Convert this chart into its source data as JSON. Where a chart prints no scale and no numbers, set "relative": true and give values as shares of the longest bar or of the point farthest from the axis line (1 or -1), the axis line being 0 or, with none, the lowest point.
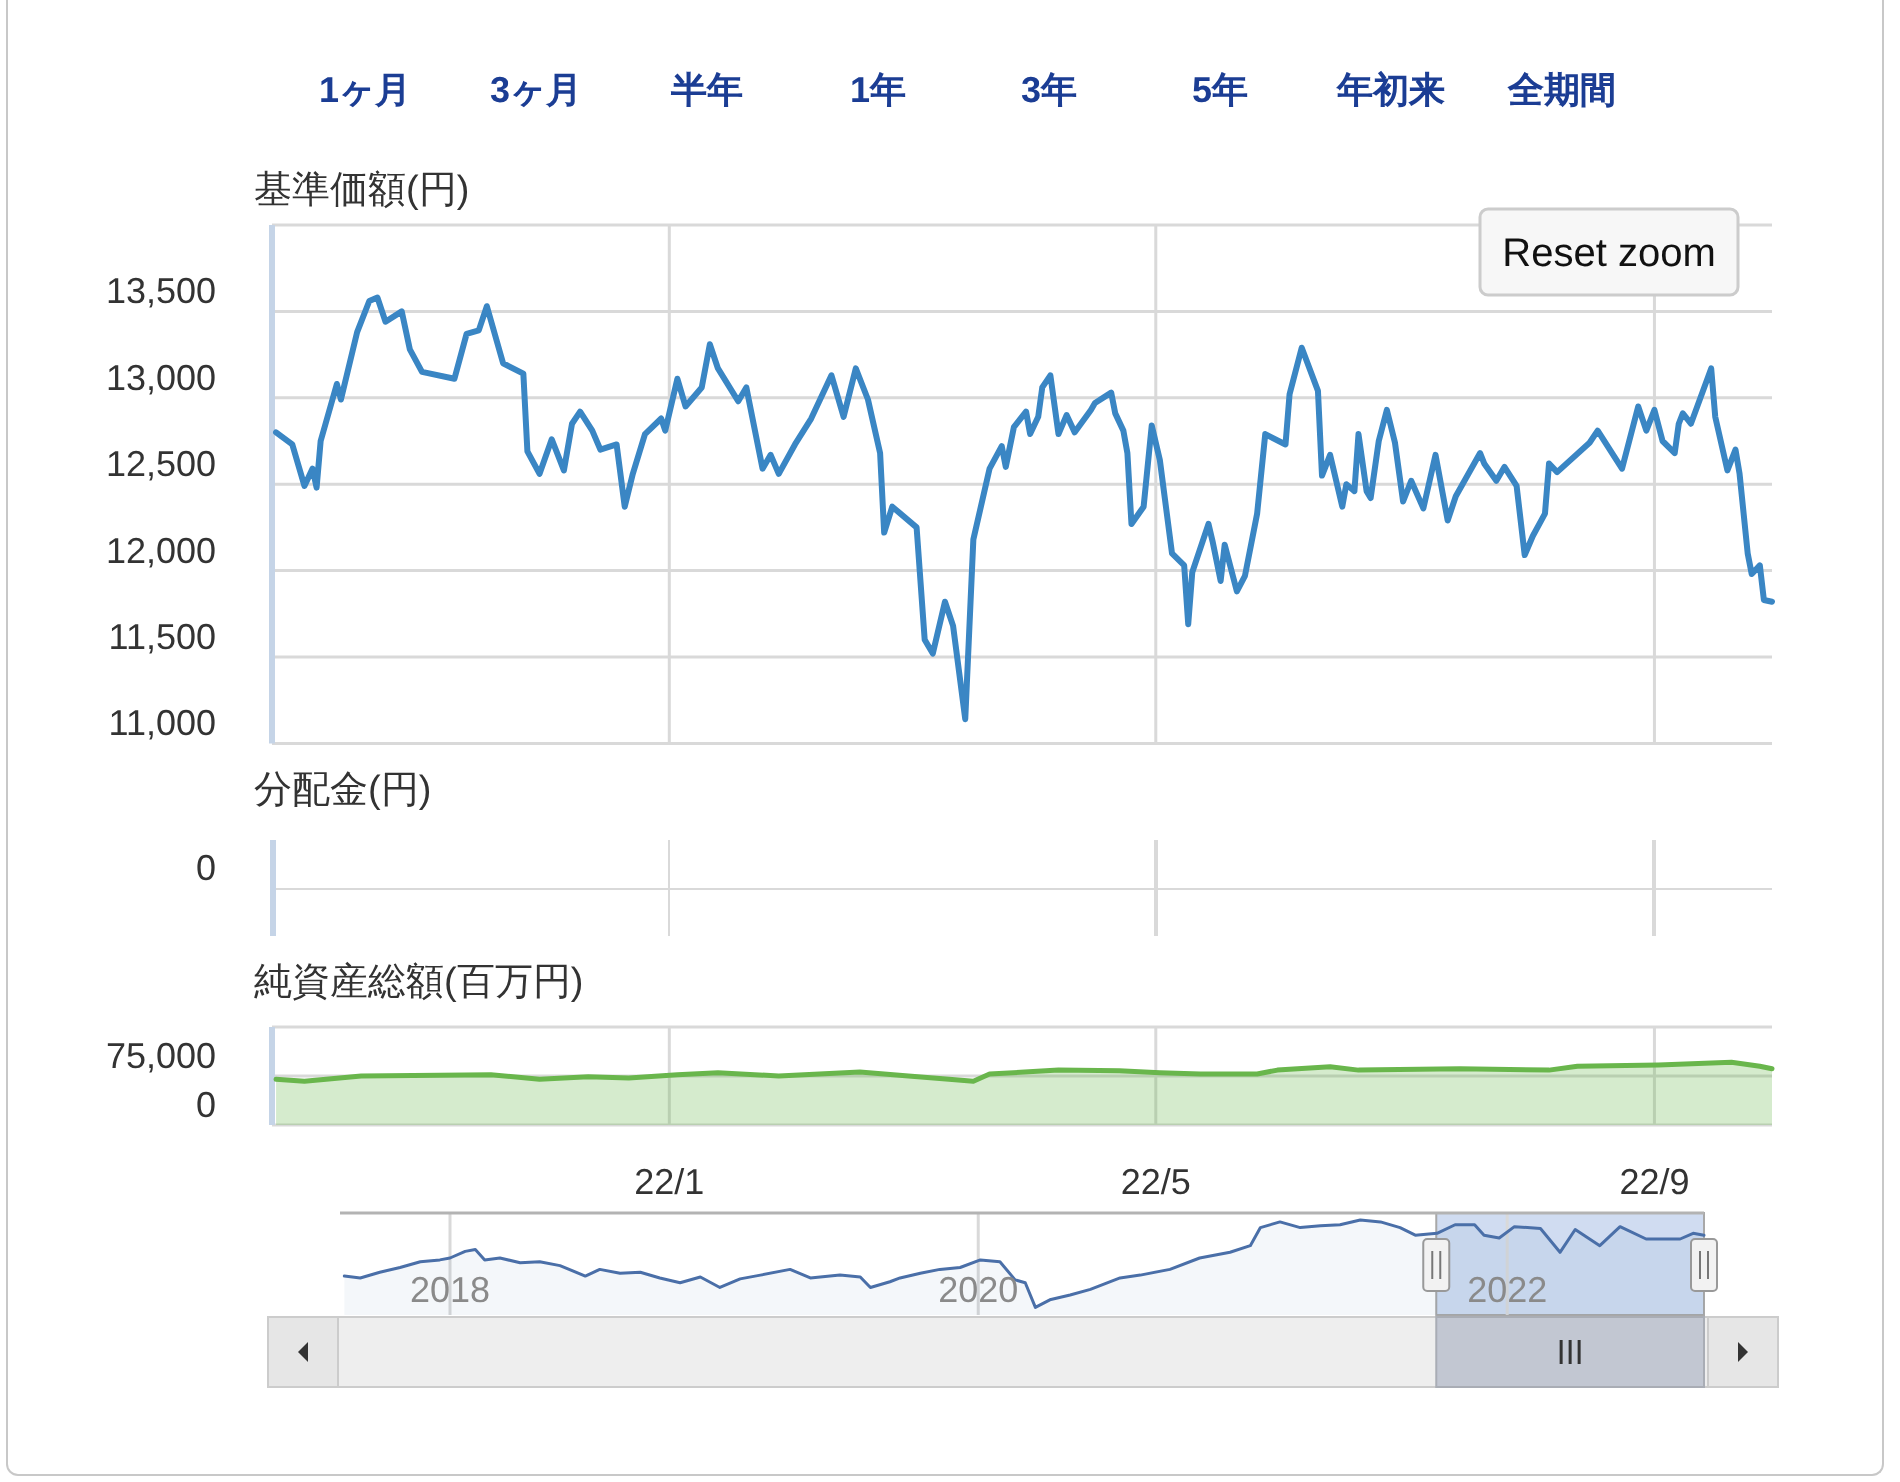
{
  "chart_data": [
    {
      "type": "other",
      "annotations": [
        "1ヶ月",
        "3ヶ月",
        "半年",
        "1年",
        "3年",
        "5年",
        "年初来",
        "全期間"
      ]
    },
    {
      "type": "line",
      "title": "基準価額(円)",
      "color": "#3a86c4",
      "annotations": [
        "Reset zoom"
      ],
      "x": [
        "2021-09-26",
        "2021-09-30",
        "2021-10-03",
        "2021-10-05",
        "2021-10-06",
        "2021-10-07",
        "2021-10-11",
        "2021-10-12",
        "2021-10-16",
        "2021-10-19",
        "2021-10-21",
        "2021-10-23",
        "2021-10-27",
        "2021-10-29",
        "2021-11-01",
        "2021-11-09",
        "2021-11-12",
        "2021-11-15",
        "2021-11-17",
        "2021-11-21",
        "2021-11-26",
        "2021-11-27",
        "2021-11-30",
        "2021-12-03",
        "2021-12-06",
        "2021-12-08",
        "2021-12-10",
        "2021-12-13",
        "2021-12-15",
        "2021-12-19",
        "2021-12-21",
        "2021-12-23",
        "2021-12-26",
        "2021-12-30",
        "2021-12-31",
        "2022-01-03",
        "2022-01-05",
        "2022-01-09",
        "2022-01-11",
        "2022-01-13",
        "2022-01-18",
        "2022-01-20",
        "2022-01-24",
        "2022-01-26",
        "2022-01-28",
        "2022-02-01",
        "2022-02-05",
        "2022-02-10",
        "2022-02-13",
        "2022-02-16",
        "2022-02-19",
        "2022-02-22",
        "2022-02-23",
        "2022-02-25",
        "2022-03-03",
        "2022-03-05",
        "2022-03-07",
        "2022-03-10",
        "2022-03-12",
        "2022-03-15",
        "2022-03-17",
        "2022-03-21",
        "2022-03-24",
        "2022-03-25",
        "2022-03-27",
        "2022-03-30",
        "2022-03-31",
        "2022-04-02",
        "2022-04-03",
        "2022-04-05",
        "2022-04-07",
        "2022-04-09",
        "2022-04-11",
        "2022-04-15",
        "2022-04-16",
        "2022-04-20",
        "2022-04-21",
        "2022-04-23",
        "2022-04-24",
        "2022-04-25",
        "2022-04-28",
        "2022-04-30",
        "2022-05-02",
        "2022-05-05",
        "2022-05-08",
        "2022-05-09",
        "2022-05-10",
        "2022-05-14",
        "2022-05-15",
        "2022-05-17",
        "2022-05-18",
        "2022-05-21",
        "2022-05-23",
        "2022-05-26",
        "2022-05-28",
        "2022-06-02",
        "2022-06-03",
        "2022-06-06",
        "2022-06-10",
        "2022-06-11",
        "2022-06-13",
        "2022-06-16",
        "2022-06-17",
        "2022-06-19",
        "2022-06-20",
        "2022-06-22",
        "2022-06-23",
        "2022-06-25",
        "2022-06-27",
        "2022-06-29",
        "2022-07-01",
        "2022-07-03",
        "2022-07-06",
        "2022-07-09",
        "2022-07-12",
        "2022-07-14",
        "2022-07-20",
        "2022-07-21",
        "2022-07-24",
        "2022-07-26",
        "2022-07-29",
        "2022-07-31",
        "2022-08-02",
        "2022-08-05",
        "2022-08-06",
        "2022-08-08",
        "2022-08-16",
        "2022-08-18",
        "2022-08-24",
        "2022-08-28",
        "2022-08-30",
        "2022-09-01",
        "2022-09-03",
        "2022-09-06",
        "2022-09-07",
        "2022-09-08",
        "2022-09-10",
        "2022-09-15",
        "2022-09-16",
        "2022-09-19",
        "2022-09-21",
        "2022-09-22",
        "2022-09-24",
        "2022-09-25",
        "2022-09-27",
        "2022-09-28",
        "2022-09-30"
      ],
      "values": [
        12800,
        12730,
        12490,
        12590,
        12480,
        12750,
        13080,
        12990,
        13380,
        13560,
        13580,
        13440,
        13500,
        13280,
        13150,
        13110,
        13370,
        13390,
        13530,
        13200,
        13140,
        12690,
        12560,
        12760,
        12580,
        12850,
        12920,
        12810,
        12700,
        12730,
        12370,
        12560,
        12790,
        12880,
        12810,
        13110,
        12950,
        13060,
        13310,
        13170,
        12980,
        13060,
        12590,
        12670,
        12560,
        12730,
        12880,
        13130,
        12890,
        13170,
        12990,
        12680,
        12220,
        12370,
        12250,
        11600,
        11520,
        11820,
        11680,
        11140,
        12180,
        12590,
        12720,
        12600,
        12830,
        12920,
        12790,
        12890,
        13060,
        13130,
        12790,
        12900,
        12800,
        12930,
        12970,
        13030,
        12910,
        12810,
        12680,
        12270,
        12370,
        12840,
        12640,
        12100,
        12030,
        11690,
        11990,
        12270,
        12170,
        11940,
        12150,
        11880,
        11970,
        12330,
        12790,
        12730,
        13020,
        13290,
        13040,
        12550,
        12670,
        12370,
        12500,
        12460,
        12790,
        12460,
        12420,
        12750,
        12930,
        12740,
        12400,
        12520,
        12360,
        12670,
        12290,
        12430,
        12680,
        12620,
        12520,
        12600,
        12490,
        12090,
        12200,
        12330,
        12620,
        12570,
        12740,
        12810,
        12590,
        12950,
        12810,
        12930,
        12750,
        12680,
        12850,
        12910,
        12850,
        13170,
        12890,
        12580,
        12700,
        12560,
        12100,
        11980,
        12030,
        11830,
        11820
      ],
      "xlim": [
        "2021-09-25",
        "2022-09-30"
      ],
      "xticks": [
        {
          "value": "2022-01-01",
          "label": null
        },
        {
          "value": "2022-05-01",
          "label": null
        },
        {
          "value": "2022-09-01",
          "label": null
        }
      ],
      "ylim": [
        11000,
        14000
      ],
      "yticks": [
        {
          "value": 11000,
          "label": "11,000"
        },
        {
          "value": 11500,
          "label": "11,500"
        },
        {
          "value": 12000,
          "label": "12,000"
        },
        {
          "value": 12500,
          "label": "12,500"
        },
        {
          "value": 13000,
          "label": "13,000"
        },
        {
          "value": 13500,
          "label": "13,500"
        },
        {
          "value": 14000,
          "label": null
        }
      ],
      "grid": true,
      "tick_labels": "y"
    },
    {
      "type": "other",
      "title": "分配金(円)",
      "annotations": [
        "0"
      ]
    },
    {
      "type": "area",
      "title": "純資産総額(百万円)",
      "color": "#69b64c",
      "x": [
        "2021-09-26",
        "2021-10-03",
        "2021-10-17",
        "2021-11-18",
        "2021-11-30",
        "2021-12-12",
        "2021-12-22",
        "2022-01-03",
        "2022-01-13",
        "2022-01-28",
        "2022-02-17",
        "2022-03-01",
        "2022-03-11",
        "2022-03-17",
        "2022-03-21",
        "2022-04-07",
        "2022-04-22",
        "2022-05-02",
        "2022-05-12",
        "2022-05-26",
        "2022-05-31",
        "2022-06-13",
        "2022-06-20",
        "2022-07-15",
        "2022-08-06",
        "2022-08-13",
        "2022-09-02",
        "2022-09-20",
        "2022-09-27",
        "2022-09-30"
      ],
      "values": [
        70000,
        67000,
        75000,
        77000,
        70000,
        74000,
        72000,
        77000,
        80000,
        75000,
        81000,
        75000,
        70000,
        67000,
        78000,
        84000,
        83000,
        80000,
        78000,
        78000,
        84000,
        89000,
        84000,
        86000,
        84000,
        90000,
        92000,
        96000,
        90000,
        86000
      ],
      "xlim": [
        "2021-09-25",
        "2022-09-30"
      ],
      "xticks": [
        {
          "value": "2022-01-01",
          "label": "22/1"
        },
        {
          "value": "2022-05-01",
          "label": "22/5"
        },
        {
          "value": "2022-09-01",
          "label": "22/9"
        }
      ],
      "ylim": [
        0,
        150000
      ],
      "yticks": [
        0,
        {
          "value": 75000,
          "label": "75,000"
        },
        {
          "value": 150000,
          "label": null
        }
      ],
      "grid": true
    },
    {
      "type": "area",
      "relative": true,
      "color": "#4a6fa8",
      "x": [
        "2017-08-08",
        "2017-08-30",
        "2017-09-26",
        "2017-10-24",
        "2017-11-21",
        "2017-12-18",
        "2018-01-01",
        "2018-01-22",
        "2018-02-05",
        "2018-02-18",
        "2018-03-11",
        "2018-04-08",
        "2018-05-05",
        "2018-06-02",
        "2018-07-07",
        "2018-07-27",
        "2018-08-24",
        "2018-09-21",
        "2018-10-18",
        "2018-11-15",
        "2018-12-13",
        "2019-01-09",
        "2019-02-06",
        "2019-03-06",
        "2019-04-16",
        "2019-05-14",
        "2019-06-24",
        "2019-07-22",
        "2019-08-05",
        "2019-09-01",
        "2019-09-15",
        "2019-10-13",
        "2019-11-09",
        "2019-12-07",
        "2020-01-04",
        "2020-01-31",
        "2020-02-21",
        "2020-03-06",
        "2020-03-20",
        "2020-04-09",
        "2020-05-07",
        "2020-06-04",
        "2020-07-15",
        "2020-08-12",
        "2020-09-22",
        "2020-11-02",
        "2020-12-14",
        "2021-01-11",
        "2021-01-25",
        "2021-02-21",
        "2021-03-21",
        "2021-04-18",
        "2021-05-15",
        "2021-06-12",
        "2021-07-10",
        "2021-08-06",
        "2021-08-27",
        "2021-09-26",
        "2021-10-21",
        "2021-11-17",
        "2021-11-30",
        "2021-12-21",
        "2022-01-11",
        "2022-02-16",
        "2022-03-15",
        "2022-04-05",
        "2022-05-09",
        "2022-06-06",
        "2022-07-12",
        "2022-08-28",
        "2022-09-15",
        "2022-09-30"
      ],
      "values": [
        0.41,
        0.39,
        0.45,
        0.5,
        0.56,
        0.58,
        0.6,
        0.67,
        0.69,
        0.58,
        0.6,
        0.55,
        0.56,
        0.52,
        0.41,
        0.48,
        0.44,
        0.45,
        0.39,
        0.34,
        0.4,
        0.29,
        0.38,
        0.42,
        0.48,
        0.39,
        0.42,
        0.4,
        0.29,
        0.35,
        0.39,
        0.44,
        0.48,
        0.5,
        0.58,
        0.56,
        0.37,
        0.34,
        0.08,
        0.16,
        0.21,
        0.27,
        0.39,
        0.42,
        0.48,
        0.6,
        0.66,
        0.73,
        0.92,
        0.98,
        0.92,
        0.94,
        0.95,
        1,
        0.98,
        0.92,
        0.84,
        0.86,
        0.95,
        0.95,
        0.84,
        0.81,
        0.93,
        0.91,
        0.66,
        0.9,
        0.73,
        0.93,
        0.8,
        0.8,
        0.86,
        0.84
      ],
      "xlim": [
        "2017-08-02",
        "2022-09-30"
      ],
      "xticks": [
        {
          "value": "2018-01-01",
          "label": "2018"
        },
        {
          "value": "2020-01-01",
          "label": "2020"
        },
        {
          "value": "2022-01-01",
          "label": "2022"
        }
      ],
      "grid": "x",
      "tick_labels": "x",
      "bands": [
        {
          "axis": "x",
          "from": "2021-09-25",
          "to": "2022-09-30",
          "color": "#d0dcf1"
        }
      ]
    }
  ]
}
